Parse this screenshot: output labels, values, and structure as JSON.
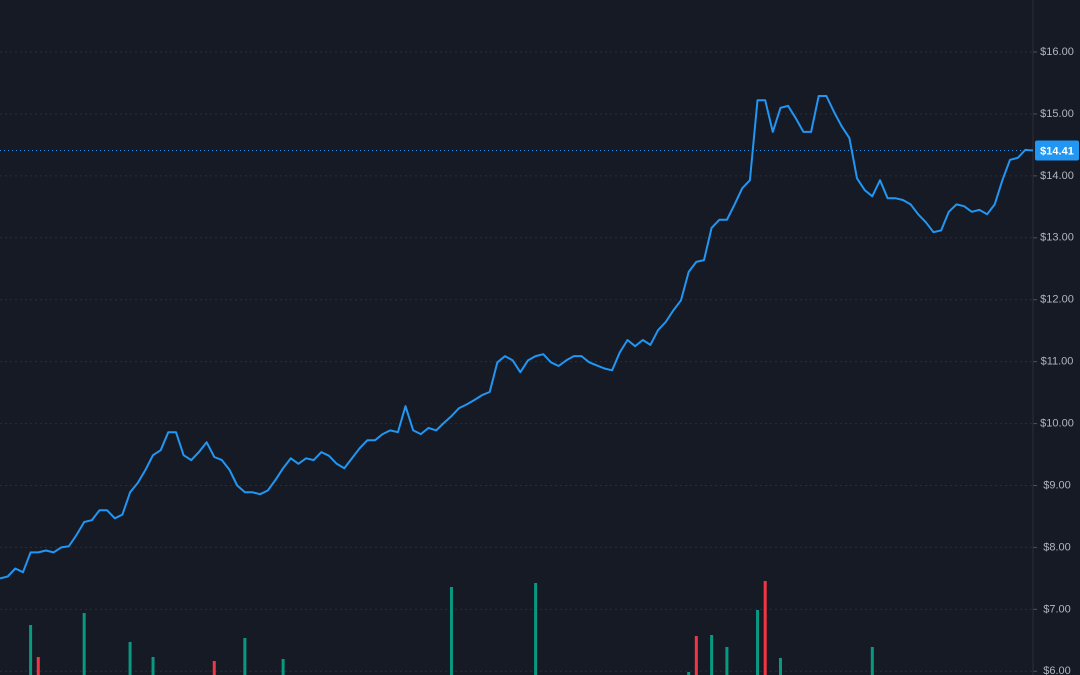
{
  "chart_data": {
    "type": "line",
    "values": [
      7.5,
      7.53,
      7.66,
      7.6,
      7.92,
      7.92,
      7.95,
      7.92,
      8.0,
      8.02,
      8.2,
      8.41,
      8.44,
      8.6,
      8.6,
      8.47,
      8.53,
      8.89,
      9.04,
      9.25,
      9.49,
      9.57,
      9.86,
      9.86,
      9.49,
      9.41,
      9.54,
      9.7,
      9.46,
      9.41,
      9.25,
      9.0,
      8.89,
      8.89,
      8.86,
      8.92,
      9.09,
      9.28,
      9.44,
      9.35,
      9.44,
      9.41,
      9.54,
      9.48,
      9.35,
      9.28,
      9.44,
      9.6,
      9.73,
      9.73,
      9.83,
      9.89,
      9.86,
      10.28,
      9.89,
      9.83,
      9.93,
      9.89,
      10.01,
      10.12,
      10.25,
      10.31,
      10.38,
      10.46,
      10.51,
      10.99,
      11.09,
      11.02,
      10.83,
      11.02,
      11.09,
      11.12,
      10.99,
      10.93,
      11.02,
      11.09,
      11.09,
      10.99,
      10.94,
      10.89,
      10.86,
      11.15,
      11.35,
      11.25,
      11.35,
      11.27,
      11.51,
      11.64,
      11.83,
      11.99,
      12.45,
      12.61,
      12.64,
      13.16,
      13.29,
      13.29,
      13.54,
      13.8,
      13.93,
      15.22,
      15.22,
      14.71,
      15.1,
      15.13,
      14.93,
      14.71,
      14.71,
      15.29,
      15.29,
      15.03,
      14.8,
      14.61,
      13.96,
      13.77,
      13.67,
      13.93,
      13.64,
      13.64,
      13.61,
      13.54,
      13.38,
      13.25,
      13.09,
      13.12,
      13.42,
      13.54,
      13.51,
      13.42,
      13.45,
      13.38,
      13.54,
      13.93,
      14.26,
      14.29,
      14.42,
      14.41
    ],
    "color": "#2196f3",
    "volume_up": [
      null,
      null,
      null,
      null,
      50,
      null,
      null,
      null,
      null,
      null,
      null,
      62,
      null,
      null,
      null,
      null,
      null,
      33,
      null,
      null,
      18,
      null,
      null,
      null,
      null,
      null,
      null,
      null,
      null,
      null,
      null,
      null,
      37,
      null,
      null,
      null,
      null,
      16,
      null,
      null,
      null,
      null,
      null,
      null,
      null,
      null,
      null,
      null,
      null,
      null,
      null,
      null,
      null,
      null,
      null,
      null,
      null,
      null,
      null,
      88,
      null,
      null,
      null,
      null,
      null,
      null,
      null,
      null,
      null,
      null,
      92,
      null,
      null,
      null,
      null,
      null,
      null,
      null,
      null,
      null,
      null,
      null,
      null,
      null,
      null,
      null,
      null,
      null,
      null,
      null,
      3,
      null,
      null,
      40,
      null,
      28,
      null,
      null,
      null,
      65,
      null,
      null,
      17,
      null,
      null,
      null,
      null,
      null,
      null,
      null,
      null,
      null,
      null,
      null,
      28,
      null,
      null,
      null,
      null,
      null,
      null,
      null,
      null,
      null,
      null,
      null,
      null,
      null,
      null,
      null,
      null,
      null,
      null,
      null,
      null,
      null
    ],
    "volume_down": [
      null,
      null,
      null,
      null,
      null,
      18,
      null,
      null,
      null,
      null,
      null,
      null,
      null,
      null,
      null,
      null,
      null,
      null,
      null,
      null,
      null,
      null,
      null,
      null,
      null,
      null,
      null,
      null,
      14,
      null,
      null,
      null,
      null,
      null,
      null,
      null,
      null,
      null,
      null,
      null,
      null,
      null,
      null,
      null,
      null,
      null,
      null,
      null,
      null,
      null,
      null,
      null,
      null,
      null,
      null,
      null,
      null,
      null,
      null,
      null,
      null,
      null,
      null,
      null,
      null,
      null,
      null,
      null,
      null,
      null,
      null,
      null,
      null,
      null,
      null,
      null,
      null,
      null,
      null,
      null,
      null,
      null,
      null,
      null,
      null,
      null,
      null,
      null,
      null,
      null,
      null,
      39,
      null,
      null,
      null,
      null,
      null,
      null,
      null,
      null,
      94,
      null,
      null,
      null,
      null,
      null,
      null,
      null,
      null,
      null,
      null,
      null,
      null,
      null,
      null,
      null,
      null,
      null,
      null,
      null,
      null,
      null,
      null,
      null,
      null,
      null,
      null,
      null,
      null,
      null,
      null,
      null,
      null,
      null,
      null,
      null
    ],
    "up_color": "#089981",
    "down_color": "#f23645",
    "ylim": [
      5.94,
      16.84
    ],
    "yticks": [
      {
        "value": 6,
        "label": "$6.00"
      },
      {
        "value": 7,
        "label": "$7.00"
      },
      {
        "value": 8,
        "label": "$8.00"
      },
      {
        "value": 9,
        "label": "$9.00"
      },
      {
        "value": 10,
        "label": "$10.00"
      },
      {
        "value": 11,
        "label": "$11.00"
      },
      {
        "value": 12,
        "label": "$12.00"
      },
      {
        "value": 13,
        "label": "$13.00"
      },
      {
        "value": 14,
        "label": "$14.00"
      },
      {
        "value": 15,
        "label": "$15.00"
      },
      {
        "value": 16,
        "label": "$16.00"
      }
    ],
    "grid": true,
    "price_line": {
      "value": 14.41,
      "label": "$14.41"
    }
  }
}
